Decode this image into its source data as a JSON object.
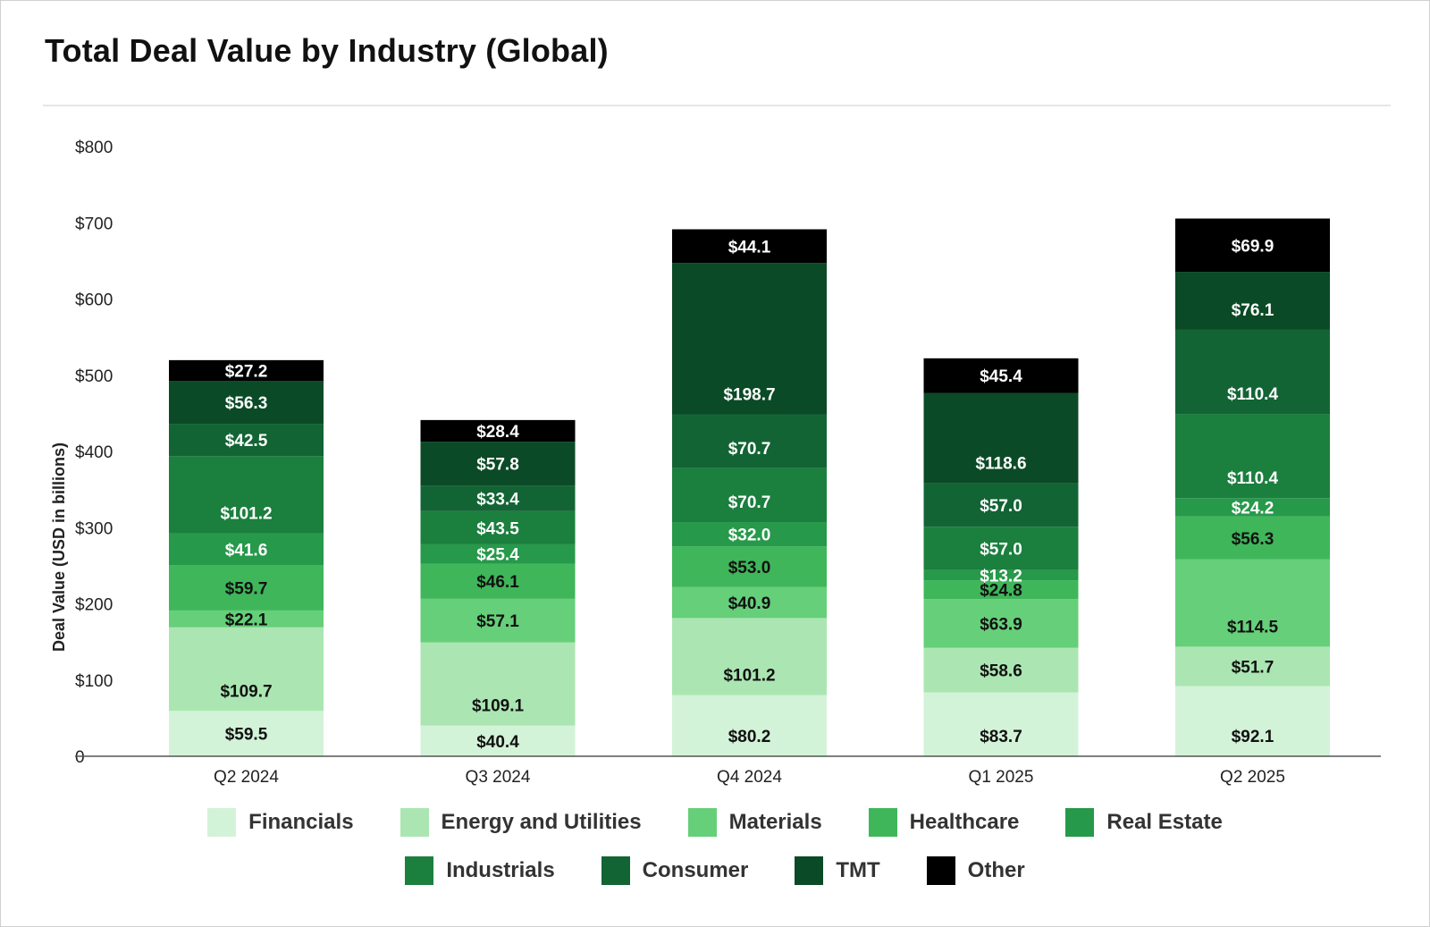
{
  "title": "Total Deal Value by Industry (Global)",
  "chart_data": {
    "type": "bar",
    "stacked": true,
    "categories": [
      "Q2 2024",
      "Q3 2024",
      "Q4 2024",
      "Q1 2025",
      "Q2 2025"
    ],
    "ylabel": "Deal Value (USD in billions)",
    "ylim": [
      0,
      800
    ],
    "y_ticks": [
      "0",
      "$100",
      "$200",
      "$300",
      "$400",
      "$500",
      "$600",
      "$700",
      "$800"
    ],
    "legend_position": "bottom",
    "series": [
      {
        "name": "Financials",
        "color": "#d3f3d8",
        "label_color": "#111111",
        "values": [
          59.5,
          40.4,
          80.2,
          83.7,
          92.1
        ],
        "labels": [
          "$59.5",
          "$40.4",
          "$80.2",
          "$83.7",
          "$92.1"
        ]
      },
      {
        "name": "Energy and Utilities",
        "color": "#abe6b2",
        "label_color": "#111111",
        "values": [
          109.7,
          109.1,
          101.2,
          58.6,
          51.7
        ],
        "labels": [
          "$109.7",
          "$109.1",
          "$101.2",
          "$58.6",
          "$51.7"
        ]
      },
      {
        "name": "Materials",
        "color": "#66cf79",
        "label_color": "#111111",
        "values": [
          22.1,
          57.1,
          40.9,
          63.9,
          114.5
        ],
        "labels": [
          "$22.1",
          "$57.1",
          "$40.9",
          "$63.9",
          "$114.5"
        ]
      },
      {
        "name": "Healthcare",
        "color": "#3fb65a",
        "label_color": "#111111",
        "values": [
          59.7,
          46.1,
          53.0,
          24.8,
          56.3
        ],
        "labels": [
          "$59.7",
          "$46.1",
          "$53.0",
          "$24.8",
          "$56.3"
        ]
      },
      {
        "name": "Real Estate",
        "color": "#27994a",
        "label_color": "#ffffff",
        "values": [
          41.6,
          25.4,
          32.0,
          13.2,
          24.2
        ],
        "labels": [
          "$41.6",
          "$25.4",
          "$32.0",
          "$13.2",
          "$24.2"
        ]
      },
      {
        "name": "Industrials",
        "color": "#1b7f3e",
        "label_color": "#ffffff",
        "values": [
          101.2,
          43.5,
          70.7,
          57.0,
          110.4
        ],
        "labels": [
          "$101.2",
          "$43.5",
          "$70.7",
          "$57.0",
          "$110.4"
        ]
      },
      {
        "name": "Consumer",
        "color": "#136434",
        "label_color": "#ffffff",
        "values": [
          42.5,
          33.4,
          70.7,
          57.0,
          110.4
        ],
        "labels": [
          "$42.5",
          "$33.4",
          "$70.7",
          "$57.0",
          "$110.4"
        ]
      },
      {
        "name": "TMT",
        "color": "#0b4a26",
        "label_color": "#ffffff",
        "values": [
          56.3,
          57.8,
          198.7,
          118.6,
          76.1
        ],
        "labels": [
          "$56.3",
          "$57.8",
          "$198.7",
          "$118.6",
          "$76.1"
        ]
      },
      {
        "name": "Other",
        "color": "#000000",
        "label_color": "#ffffff",
        "values": [
          27.2,
          28.4,
          44.1,
          45.4,
          69.9
        ],
        "labels": [
          "$27.2",
          "$28.4",
          "$44.1",
          "$45.4",
          "$69.9"
        ]
      }
    ]
  }
}
